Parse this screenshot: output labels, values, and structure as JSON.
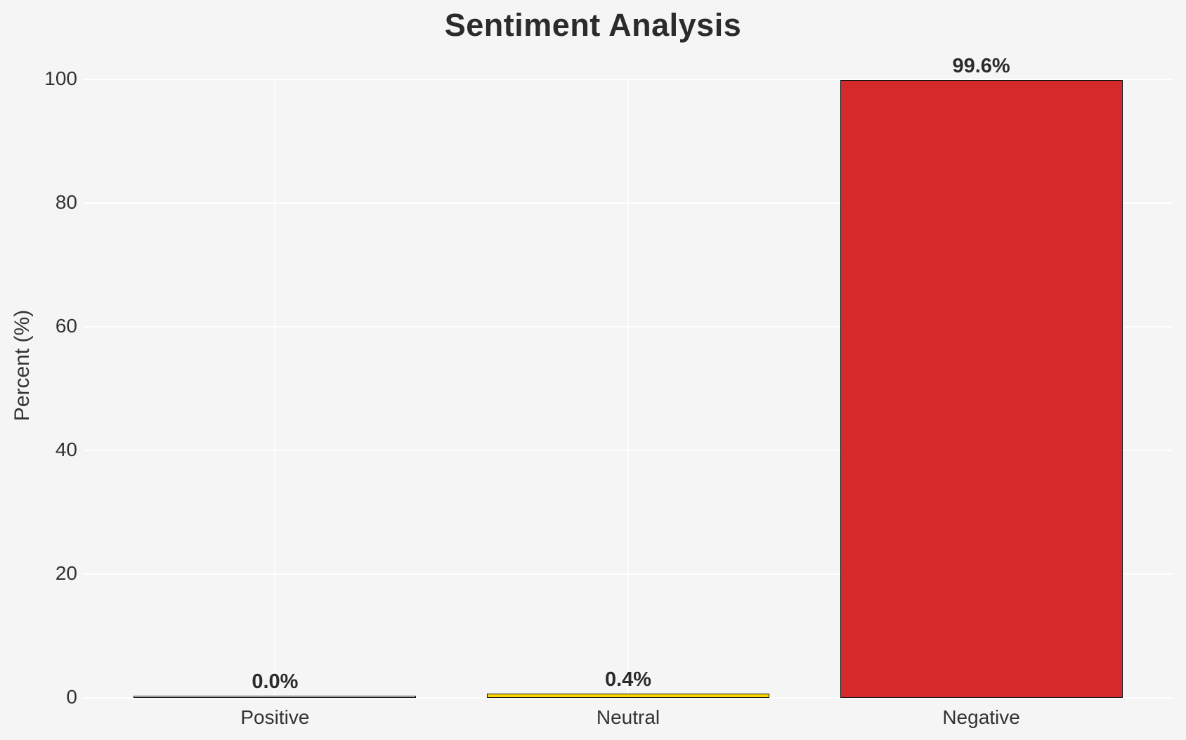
{
  "chart_data": {
    "type": "bar",
    "title": "Sentiment Analysis",
    "xlabel": "",
    "ylabel": "Percent (%)",
    "categories": [
      "Positive",
      "Neutral",
      "Negative"
    ],
    "values": [
      0.0,
      0.4,
      99.6
    ],
    "value_labels": [
      "0.0%",
      "0.4%",
      "99.6%"
    ],
    "bar_colors": [
      "none",
      "#ffd700",
      "#d62929"
    ],
    "bar_edge_color": "#141414",
    "ylim": [
      0,
      100
    ],
    "yticks": [
      0,
      20,
      40,
      60,
      80,
      100
    ],
    "grid": true,
    "legend": false,
    "colors": {
      "background": "#f5f5f6",
      "gridline": "#ffffff",
      "title_text": "#2b2b2b",
      "tick_text": "#333333"
    }
  }
}
